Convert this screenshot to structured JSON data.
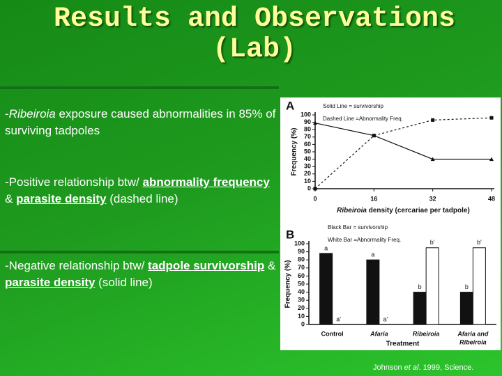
{
  "slide": {
    "title": [
      "Results and Observations",
      "(Lab)"
    ],
    "bullets": [
      [
        {
          "text": "-",
          "style": "plain"
        },
        {
          "text": "Ribeiroia",
          "style": "italic"
        },
        {
          "text": " exposure caused abnormalities in 85% of surviving tadpoles",
          "style": "plain"
        }
      ],
      [
        {
          "text": "-Positive relationship btw/ ",
          "style": "plain"
        },
        {
          "text": "abnormality frequency",
          "style": "bold-underline"
        },
        {
          "text": " & ",
          "style": "plain"
        },
        {
          "text": "parasite density",
          "style": "bold-underline"
        },
        {
          "text": " (dashed line)",
          "style": "plain"
        }
      ],
      [
        {
          "text": "-Negative relationship btw/ ",
          "style": "plain"
        },
        {
          "text": "tadpole survivorship",
          "style": "bold-underline"
        },
        {
          "text": " & ",
          "style": "plain"
        },
        {
          "text": "parasite density",
          "style": "bold-underline"
        },
        {
          "text": " (solid line)",
          "style": "plain"
        }
      ]
    ],
    "citation": [
      {
        "text": "Johnson ",
        "style": "plain"
      },
      {
        "text": "et al",
        "style": "italic"
      },
      {
        "text": ". 1999, Science.",
        "style": "plain"
      }
    ]
  },
  "chart_data": [
    {
      "type": "line",
      "panel": "A",
      "ylabel": "Frequency (%)",
      "xlabel": [
        "Ribeiroia",
        "density (cercariae per tadpole)"
      ],
      "x": [
        0,
        16,
        32,
        48
      ],
      "xlim": [
        0,
        48
      ],
      "xticks": [
        0,
        16,
        32,
        48
      ],
      "ylim": [
        0,
        100
      ],
      "yticks": [
        0,
        10,
        20,
        30,
        40,
        50,
        60,
        70,
        80,
        90,
        100
      ],
      "series": [
        {
          "name": "Solid Line = survivorship",
          "color": "#111111",
          "dash": false,
          "marker": "triangle",
          "values": [
            89,
            72,
            40,
            40
          ]
        },
        {
          "name": "Dashed Line =Abnormality Freq.",
          "color": "#111111",
          "dash": true,
          "marker": "square",
          "values": [
            0,
            72,
            93,
            96
          ]
        }
      ]
    },
    {
      "type": "bar",
      "panel": "B",
      "ylabel": "Frequency (%)",
      "xlabel": "Treatment",
      "categories": [
        [
          "Control"
        ],
        [
          "Afaria"
        ],
        [
          "Ribeiroia"
        ],
        [
          "Afaria and",
          "Ribeiroia"
        ]
      ],
      "ylim": [
        0,
        100
      ],
      "yticks": [
        0,
        10,
        20,
        30,
        40,
        50,
        60,
        70,
        80,
        90,
        100
      ],
      "series": [
        {
          "name": "Black Bar = survivorship",
          "color": "#111111",
          "values": [
            88,
            80,
            40,
            40
          ],
          "letters": [
            "a",
            "a",
            "b",
            "b"
          ]
        },
        {
          "name": "White Bar =Abnormality Freq.",
          "color": "#ffffff",
          "values": [
            0,
            0,
            95,
            95
          ],
          "letters": [
            "a'",
            "a'",
            "b'",
            "b'"
          ]
        }
      ]
    }
  ]
}
